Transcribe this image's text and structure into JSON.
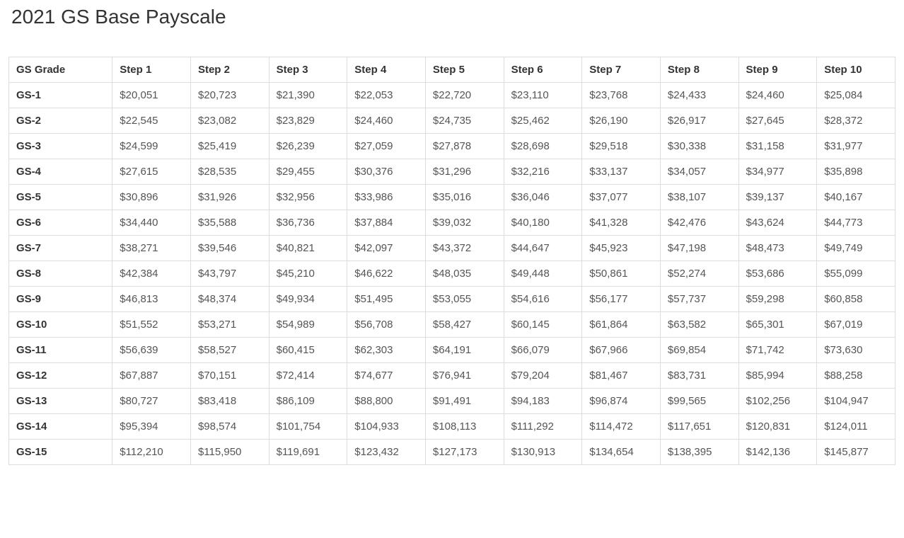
{
  "title": "2021 GS Base Payscale",
  "table": {
    "type": "table",
    "grade_header": "GS Grade",
    "columns": [
      "Step 1",
      "Step 2",
      "Step 3",
      "Step 4",
      "Step 5",
      "Step 6",
      "Step 7",
      "Step 8",
      "Step 9",
      "Step 10"
    ],
    "rows": [
      {
        "grade": "GS-1",
        "values": [
          "$20,051",
          "$20,723",
          "$21,390",
          "$22,053",
          "$22,720",
          "$23,110",
          "$23,768",
          "$24,433",
          "$24,460",
          "$25,084"
        ]
      },
      {
        "grade": "GS-2",
        "values": [
          "$22,545",
          "$23,082",
          "$23,829",
          "$24,460",
          "$24,735",
          "$25,462",
          "$26,190",
          "$26,917",
          "$27,645",
          "$28,372"
        ]
      },
      {
        "grade": "GS-3",
        "values": [
          "$24,599",
          "$25,419",
          "$26,239",
          "$27,059",
          "$27,878",
          "$28,698",
          "$29,518",
          "$30,338",
          "$31,158",
          "$31,977"
        ]
      },
      {
        "grade": "GS-4",
        "values": [
          "$27,615",
          "$28,535",
          "$29,455",
          "$30,376",
          "$31,296",
          "$32,216",
          "$33,137",
          "$34,057",
          "$34,977",
          "$35,898"
        ]
      },
      {
        "grade": "GS-5",
        "values": [
          "$30,896",
          "$31,926",
          "$32,956",
          "$33,986",
          "$35,016",
          "$36,046",
          "$37,077",
          "$38,107",
          "$39,137",
          "$40,167"
        ]
      },
      {
        "grade": "GS-6",
        "values": [
          "$34,440",
          "$35,588",
          "$36,736",
          "$37,884",
          "$39,032",
          "$40,180",
          "$41,328",
          "$42,476",
          "$43,624",
          "$44,773"
        ]
      },
      {
        "grade": "GS-7",
        "values": [
          "$38,271",
          "$39,546",
          "$40,821",
          "$42,097",
          "$43,372",
          "$44,647",
          "$45,923",
          "$47,198",
          "$48,473",
          "$49,749"
        ]
      },
      {
        "grade": "GS-8",
        "values": [
          "$42,384",
          "$43,797",
          "$45,210",
          "$46,622",
          "$48,035",
          "$49,448",
          "$50,861",
          "$52,274",
          "$53,686",
          "$55,099"
        ]
      },
      {
        "grade": "GS-9",
        "values": [
          "$46,813",
          "$48,374",
          "$49,934",
          "$51,495",
          "$53,055",
          "$54,616",
          "$56,177",
          "$57,737",
          "$59,298",
          "$60,858"
        ]
      },
      {
        "grade": "GS-10",
        "values": [
          "$51,552",
          "$53,271",
          "$54,989",
          "$56,708",
          "$58,427",
          "$60,145",
          "$61,864",
          "$63,582",
          "$65,301",
          "$67,019"
        ]
      },
      {
        "grade": "GS-11",
        "values": [
          "$56,639",
          "$58,527",
          "$60,415",
          "$62,303",
          "$64,191",
          "$66,079",
          "$67,966",
          "$69,854",
          "$71,742",
          "$73,630"
        ]
      },
      {
        "grade": "GS-12",
        "values": [
          "$67,887",
          "$70,151",
          "$72,414",
          "$74,677",
          "$76,941",
          "$79,204",
          "$81,467",
          "$83,731",
          "$85,994",
          "$88,258"
        ]
      },
      {
        "grade": "GS-13",
        "values": [
          "$80,727",
          "$83,418",
          "$86,109",
          "$88,800",
          "$91,491",
          "$94,183",
          "$96,874",
          "$99,565",
          "$102,256",
          "$104,947"
        ]
      },
      {
        "grade": "GS-14",
        "values": [
          "$95,394",
          "$98,574",
          "$101,754",
          "$104,933",
          "$108,113",
          "$111,292",
          "$114,472",
          "$117,651",
          "$120,831",
          "$124,011"
        ]
      },
      {
        "grade": "GS-15",
        "values": [
          "$112,210",
          "$115,950",
          "$119,691",
          "$123,432",
          "$127,173",
          "$130,913",
          "$134,654",
          "$138,395",
          "$142,136",
          "$145,877"
        ]
      }
    ],
    "styling": {
      "border_color": "#dddddd",
      "header_font_weight": 700,
      "grade_font_weight": 700,
      "value_font_weight": 400,
      "value_color": "#555555",
      "header_color": "#333333",
      "background_color": "#ffffff",
      "title_fontsize": 28,
      "cell_fontsize": 15,
      "font_family": "Arial"
    }
  }
}
